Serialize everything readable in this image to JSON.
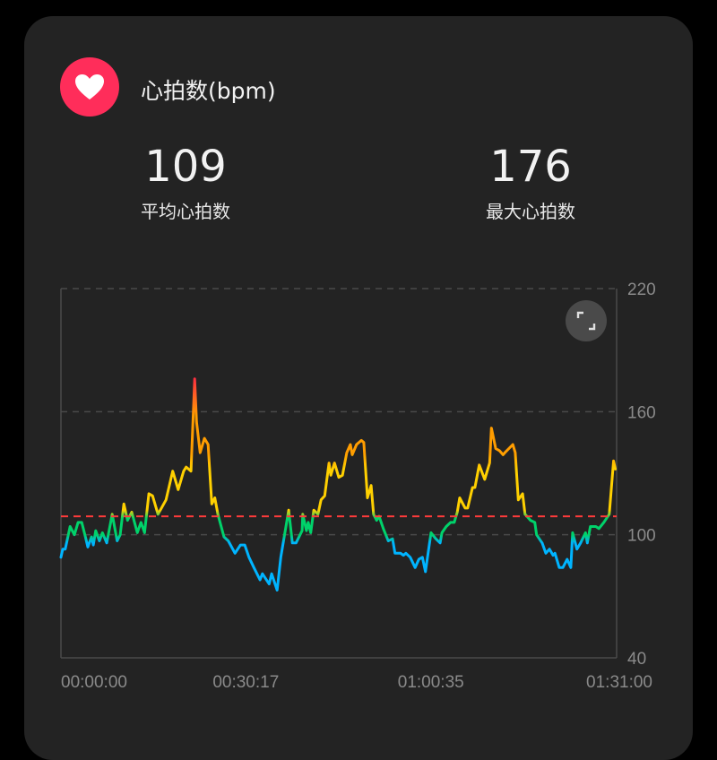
{
  "header": {
    "title": "心拍数(bpm)",
    "icon": "heart-icon",
    "icon_color": "#ff2d5a"
  },
  "stats": [
    {
      "value": "109",
      "label": "平均心拍数"
    },
    {
      "value": "176",
      "label": "最大心拍数"
    }
  ],
  "chart_data": {
    "type": "line",
    "x_unit": "minutes",
    "xlim": [
      0,
      91
    ],
    "ylim": [
      40,
      220
    ],
    "y_ticks": [
      "220",
      "160",
      "100",
      "40"
    ],
    "x_tick_labels": [
      "00:00:00",
      "00:30:17",
      "01:00:35",
      "01:31:00"
    ],
    "x_tick_values": [
      0,
      30.28,
      60.58,
      91
    ],
    "grid": "horizontal dashed",
    "average_line": {
      "value": 109,
      "color": "#ff3b3b"
    },
    "zone_colors": {
      "low": "#00b4ff",
      "moderate": "#00d26a",
      "elevated": "#ffd000",
      "high": "#ff9d00",
      "max": "#ff3040"
    },
    "x": [
      0,
      0.3,
      0.7,
      1.5,
      2.2,
      2.8,
      3.4,
      4.0,
      4.4,
      5.0,
      5.3,
      5.7,
      6.3,
      6.8,
      7.5,
      8.4,
      9.2,
      9.7,
      10.3,
      10.9,
      11.6,
      12.5,
      13.1,
      13.7,
      14.4,
      15.0,
      15.9,
      17.2,
      18.3,
      19.2,
      20.1,
      20.5,
      21.3,
      21.9,
      22.2,
      22.8,
      23.5,
      24.1,
      24.7,
      25.2,
      25.7,
      26.7,
      27.4,
      28.5,
      29.4,
      30.1,
      30.8,
      31.6,
      32.6,
      33.0,
      34.1,
      34.5,
      35.4,
      36.0,
      37.3,
      37.9,
      38.5,
      39.5,
      39.6,
      40.2,
      40.5,
      40.9,
      41.4,
      42.1,
      42.6,
      43.2,
      43.9,
      44.2,
      44.8,
      45.5,
      46.1,
      46.8,
      47.4,
      47.7,
      48.4,
      49.2,
      49.6,
      50.2,
      50.8,
      51.2,
      51.7,
      52.1,
      52.8,
      53.6,
      54.3,
      54.7,
      55.6,
      56.1,
      56.5,
      57.2,
      58.0,
      58.6,
      59.2,
      59.7,
      60.6,
      61.4,
      62.1,
      62.4,
      63.1,
      63.8,
      64.4,
      64.9,
      65.3,
      66.2,
      66.6,
      67.4,
      67.8,
      68.5,
      69.4,
      70.2,
      70.5,
      71.2,
      71.8,
      72.4,
      72.7,
      74.0,
      74.4,
      74.9,
      75.6,
      76.0,
      76.9,
      77.6,
      77.9,
      78.8,
      79.4,
      80.0,
      80.6,
      80.9,
      81.6,
      82.2,
      82.9,
      83.5,
      83.8,
      84.5,
      85.1,
      85.9,
      86.2,
      86.7,
      87.6,
      88.1,
      88.9,
      89.8,
      90.5,
      90.8
    ],
    "y": [
      89,
      93,
      93,
      104,
      100,
      106,
      106,
      99,
      94,
      99,
      95,
      102,
      97,
      101,
      96,
      110,
      97,
      100,
      115,
      107,
      111,
      101,
      106,
      101,
      120,
      119,
      110,
      117,
      131,
      122,
      131,
      133,
      131,
      176,
      155,
      140,
      147,
      144,
      115,
      118,
      110,
      99,
      97,
      91,
      95,
      95,
      89,
      84,
      78,
      81,
      76,
      81,
      73,
      89,
      112,
      96,
      96,
      102,
      110,
      102,
      106,
      101,
      112,
      110,
      117,
      119,
      135,
      129,
      135,
      128,
      129,
      140,
      144,
      139,
      144,
      146,
      145,
      118,
      124,
      110,
      107,
      109,
      103,
      97,
      98,
      91,
      91,
      90,
      91,
      89,
      84,
      88,
      89,
      82,
      101,
      98,
      96,
      101,
      104,
      106,
      106,
      111,
      118,
      113,
      113,
      123,
      123,
      134,
      127,
      135,
      152,
      142,
      141,
      139,
      140,
      144,
      140,
      117,
      120,
      110,
      107,
      106,
      100,
      96,
      91,
      93,
      90,
      91,
      84,
      84,
      88,
      84,
      101,
      93,
      96,
      101,
      96,
      104,
      104,
      103,
      106,
      110,
      136,
      132
    ]
  }
}
